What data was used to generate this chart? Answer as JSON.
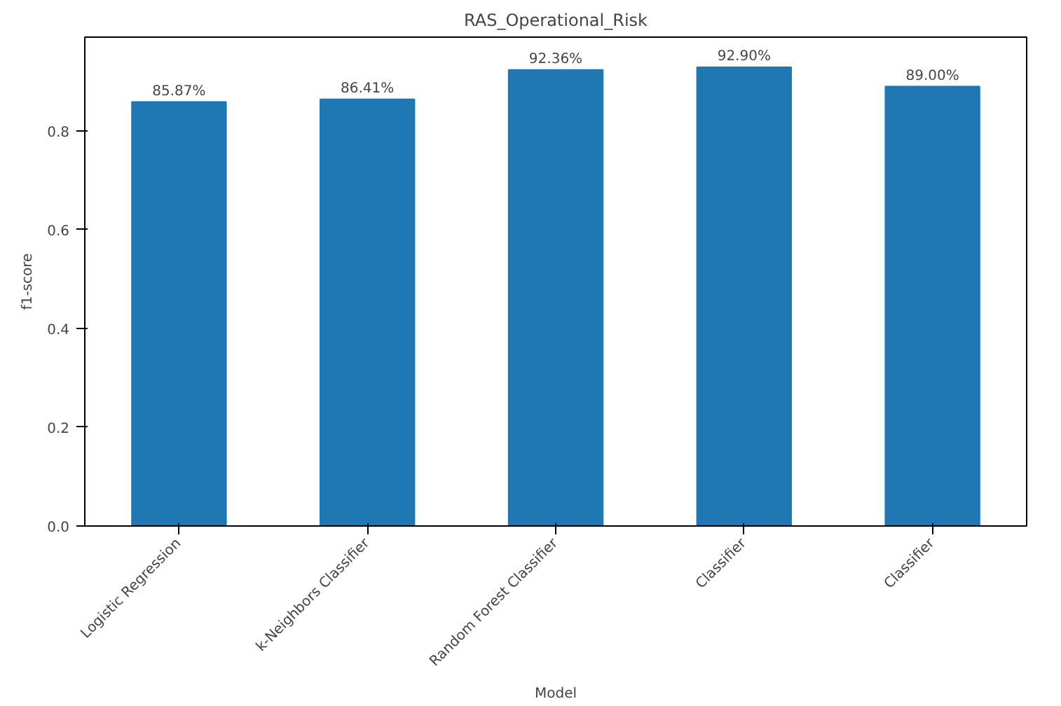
{
  "chart_data": {
    "type": "bar",
    "title": "RAS_Operational_Risk",
    "xlabel": "Model",
    "ylabel": "f1-score",
    "categories": [
      "Logistic Regression",
      "k-Neighbors Classifier",
      "Random Forest Classifier",
      "Classifier",
      "Classifier"
    ],
    "values": [
      0.8587,
      0.8641,
      0.9236,
      0.929,
      0.89
    ],
    "value_labels": [
      "85.87%",
      "86.41%",
      "92.36%",
      "92.90%",
      "89.00%"
    ],
    "color": "#1f77b4",
    "ylim": [
      0,
      0.99
    ],
    "yticks": [
      {
        "value": 0,
        "label": "0.0"
      },
      0.2,
      0.4,
      0.6,
      0.8
    ],
    "grid": false
  }
}
